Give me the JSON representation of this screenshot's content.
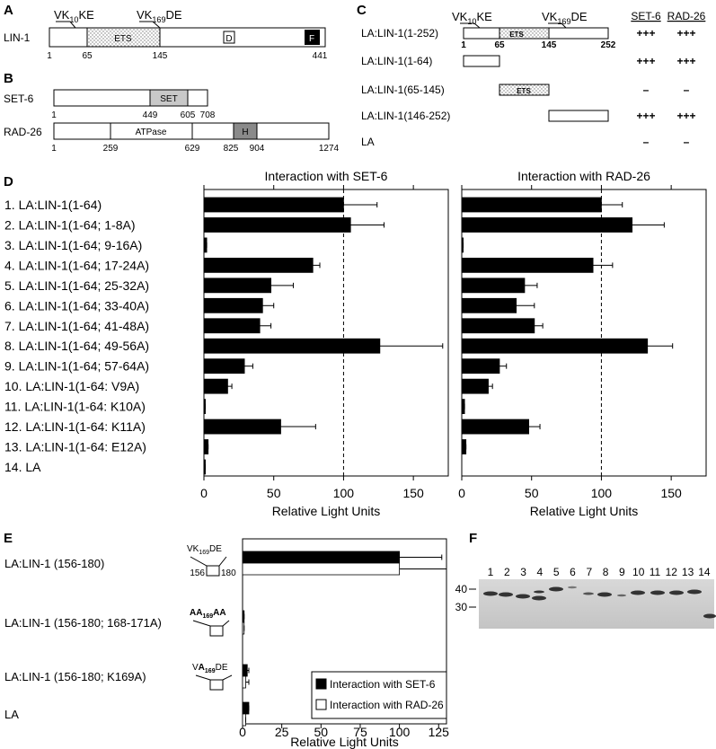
{
  "panel_labels": {
    "a": "A",
    "b": "B",
    "c": "C",
    "d": "D",
    "e": "E",
    "f": "F"
  },
  "panel_a": {
    "protein": "LIN-1",
    "motifs": [
      {
        "parts": [
          {
            "t": "VK"
          },
          {
            "t": "10",
            "sub": true
          },
          {
            "t": "KE"
          }
        ]
      },
      {
        "parts": [
          {
            "t": "VK"
          },
          {
            "t": "169",
            "sub": true
          },
          {
            "t": "DE"
          }
        ]
      }
    ],
    "domains": [
      "ETS",
      "D",
      "F"
    ],
    "positions": [
      "1",
      "65",
      "145",
      "441"
    ]
  },
  "panel_b": {
    "proteins": [
      {
        "name": "SET-6",
        "domains": [
          "SET"
        ],
        "positions": [
          "1",
          "449",
          "605",
          "708"
        ]
      },
      {
        "name": "RAD-26",
        "domains": [
          "ATPase",
          "H"
        ],
        "positions": [
          "1",
          "259",
          "629",
          "825",
          "904",
          "1274"
        ]
      }
    ]
  },
  "panel_c": {
    "headers": [
      "SET-6",
      "RAD-26"
    ],
    "motifs": [
      {
        "parts": [
          {
            "t": "VK"
          },
          {
            "t": "10",
            "sub": true
          },
          {
            "t": "KE"
          }
        ]
      },
      {
        "parts": [
          {
            "t": "VK"
          },
          {
            "t": "169",
            "sub": true
          },
          {
            "t": "DE"
          }
        ]
      }
    ],
    "positions": [
      "1",
      "65",
      "145",
      "252"
    ],
    "domain": "ETS",
    "rows": [
      {
        "construct": "LA:LIN-1(1-252)",
        "set6": "+++",
        "rad26": "+++"
      },
      {
        "construct": "LA:LIN-1(1-64)",
        "set6": "+++",
        "rad26": "+++"
      },
      {
        "construct": "LA:LIN-1(65-145)",
        "set6": "–",
        "rad26": "–"
      },
      {
        "construct": "LA:LIN-1(146-252)",
        "set6": "+++",
        "rad26": "+++"
      },
      {
        "construct": "LA",
        "set6": "–",
        "rad26": "–"
      }
    ]
  },
  "chart_data": [
    {
      "type": "bar",
      "orientation": "horizontal",
      "title": "Interaction with SET-6",
      "x_label": "Relative Light Units",
      "categories": [
        "1.  LA:LIN-1(1-64)",
        "2.  LA:LIN-1(1-64; 1-8A)",
        "3.  LA:LIN-1(1-64; 9-16A)",
        "4.  LA:LIN-1(1-64; 17-24A)",
        "5.  LA:LIN-1(1-64; 25-32A)",
        "6.  LA:LIN-1(1-64; 33-40A)",
        "7.  LA:LIN-1(1-64; 41-48A)",
        "8.  LA:LIN-1(1-64; 49-56A)",
        "9.  LA:LIN-1(1-64; 57-64A)",
        "10. LA:LIN-1(1-64: V9A)",
        "11. LA:LIN-1(1-64: K10A)",
        "12. LA:LIN-1(1-64: K11A)",
        "13. LA:LIN-1(1-64: E12A)",
        "14. LA"
      ],
      "series": [
        {
          "color": "#000000",
          "values": [
            100,
            105,
            2,
            78,
            48,
            42,
            40,
            126,
            29,
            17,
            1,
            55,
            3,
            1
          ],
          "errors": [
            24,
            24,
            0,
            5,
            16,
            8,
            8,
            45,
            6,
            3,
            0,
            25,
            0,
            0
          ]
        }
      ],
      "xlim": [
        0,
        175
      ],
      "xticks": [
        0,
        50,
        100,
        150
      ],
      "reference_line": 100
    },
    {
      "type": "bar",
      "orientation": "horizontal",
      "title": "Interaction with RAD-26",
      "x_label": "Relative Light Units",
      "series": [
        {
          "color": "#000000",
          "values": [
            100,
            122,
            1,
            94,
            45,
            39,
            52,
            133,
            27,
            19,
            2,
            48,
            3,
            0
          ],
          "errors": [
            15,
            23,
            0,
            14,
            9,
            13,
            6,
            18,
            5,
            3,
            0,
            8,
            0,
            0
          ]
        }
      ],
      "xlim": [
        0,
        175
      ],
      "xticks": [
        0,
        50,
        100,
        150
      ],
      "reference_line": 100
    },
    {
      "type": "bar",
      "orientation": "horizontal",
      "x_label": "Relative Light Units",
      "categories": [
        "LA:LIN-1 (156-180)",
        "LA:LIN-1 (156-180; 168-171A)",
        "LA:LIN-1 (156-180; K169A)",
        "LA"
      ],
      "series": [
        {
          "name": "Interaction with SET-6",
          "color": "#000000",
          "values": [
            100,
            1,
            3,
            4
          ],
          "errors": [
            27,
            0,
            1,
            0
          ]
        },
        {
          "name": "Interaction with RAD-26",
          "color": "#ffffff",
          "values": [
            100,
            1,
            2,
            2
          ],
          "errors": [
            30,
            0,
            2,
            0
          ]
        }
      ],
      "xlim": [
        0,
        130
      ],
      "xticks": [
        0,
        25,
        50,
        75,
        100,
        125
      ],
      "legend": "lower right",
      "annotations": {
        "motifs": [
          {
            "parts": [
              {
                "t": "VK"
              },
              {
                "t": "169",
                "sub": true
              },
              {
                "t": "DE"
              }
            ]
          },
          {
            "parts": [
              {
                "t": "AA",
                "bold": true
              },
              {
                "t": "169",
                "sub": true,
                "bold": true
              },
              {
                "t": "AA",
                "bold": true
              }
            ]
          },
          {
            "parts": [
              {
                "t": "V"
              },
              {
                "t": "A",
                "bold": true
              },
              {
                "t": "169",
                "sub": true,
                "bold": true
              },
              {
                "t": "DE"
              }
            ]
          }
        ],
        "range": [
          "156",
          "180"
        ]
      }
    }
  ],
  "panel_f": {
    "lanes": [
      "1",
      "2",
      "3",
      "4",
      "5",
      "6",
      "7",
      "8",
      "9",
      "10",
      "11",
      "12",
      "13",
      "14"
    ],
    "markers": [
      "40",
      "30"
    ]
  }
}
